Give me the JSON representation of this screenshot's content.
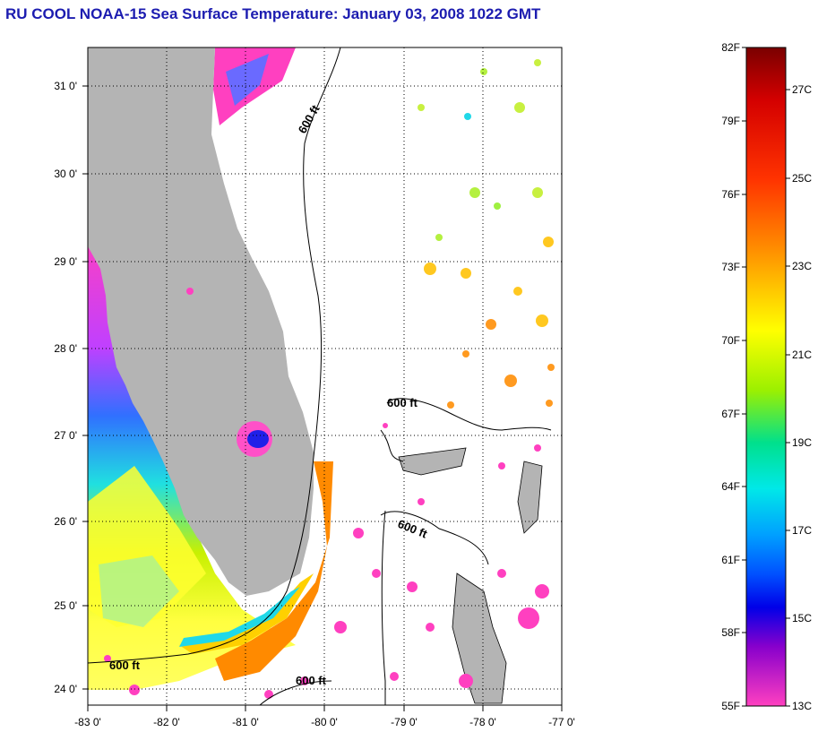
{
  "title": "RU COOL  NOAA-15  Sea Surface Temperature:  January 03, 2008 1022 GMT",
  "map": {
    "lat_labels": [
      "31 0'",
      "30 0'",
      "29 0'",
      "28 0'",
      "27 0'",
      "26 0'",
      "25 0'",
      "24 0'"
    ],
    "lon_labels": [
      "-83 0'",
      "-82 0'",
      "-81 0'",
      "-80 0'",
      "-79 0'",
      "-78 0'",
      "-77 0'"
    ],
    "contour_labels": [
      "600 ft",
      "600 ft",
      "600 ft",
      "600 ft",
      "600 ft"
    ],
    "land_color": "#b4b4b4"
  },
  "colorbar": {
    "fahrenheit_labels": [
      "82F",
      "79F",
      "76F",
      "73F",
      "70F",
      "67F",
      "64F",
      "61F",
      "58F",
      "55F"
    ],
    "celsius_labels": [
      "27C",
      "25C",
      "23C",
      "21C",
      "19C",
      "17C",
      "15C",
      "13C"
    ],
    "gradient_colors": [
      "#7a0000",
      "#d40000",
      "#ff3300",
      "#ff8800",
      "#ffd200",
      "#ffff00",
      "#9cf000",
      "#00e08c",
      "#00e8e8",
      "#00a0ff",
      "#0050ff",
      "#0000e8",
      "#8800cc",
      "#ff40c0"
    ]
  }
}
